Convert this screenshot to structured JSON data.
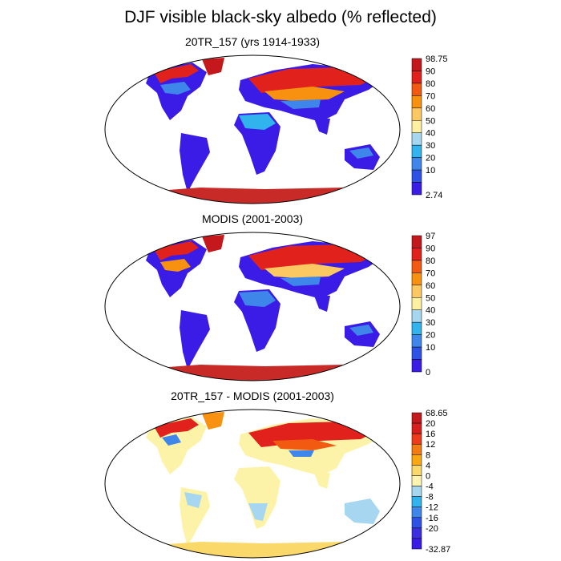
{
  "title": "DJF visible black-sky albedo (% reflected)",
  "panels": [
    {
      "title": "20TR_157 (yrs 1914-1933)",
      "colorbar": {
        "labels": [
          "98.75",
          "90",
          "80",
          "70",
          "60",
          "50",
          "40",
          "30",
          "20",
          "10",
          "2.74"
        ],
        "colors": [
          "#c4181c",
          "#e0211c",
          "#f25a12",
          "#f7910f",
          "#fbc862",
          "#fdf0a0",
          "#a6d6f0",
          "#31b4ee",
          "#3f86ea",
          "#2f52e6",
          "#3b1ce6"
        ]
      }
    },
    {
      "title": "MODIS (2001-2003)",
      "colorbar": {
        "labels": [
          "97",
          "90",
          "80",
          "70",
          "60",
          "50",
          "40",
          "30",
          "20",
          "10",
          "0"
        ],
        "colors": [
          "#c4181c",
          "#e0211c",
          "#f25a12",
          "#f7910f",
          "#fbc862",
          "#fdf0a0",
          "#a6d6f0",
          "#31b4ee",
          "#3f86ea",
          "#2f52e6",
          "#3b1ce6"
        ]
      }
    },
    {
      "title": "20TR_157 - MODIS (2001-2003)",
      "colorbar": {
        "labels": [
          "68.65",
          "20",
          "16",
          "12",
          "8",
          "4",
          "0",
          "-4",
          "-8",
          "-12",
          "-16",
          "-20",
          "-32.87"
        ],
        "colors": [
          "#c4181c",
          "#d81e1c",
          "#ee3b1c",
          "#f47a12",
          "#f9a814",
          "#fbd86a",
          "#fff4b0",
          "#a6d6f0",
          "#31b4ee",
          "#3f86ea",
          "#2f52e6",
          "#3a2ee0",
          "#3b1ce6"
        ]
      }
    }
  ],
  "map_colors": {
    "ocean": "#ffffff",
    "outline": "#000000",
    "low_albedo": "#3b1ce6",
    "mid_albedo": "#3f86ea",
    "high_albedo": "#e0211c",
    "antarctica": "#c82a28",
    "diff_zero": "#fdf3a8",
    "diff_neg": "#a6d6f0",
    "diff_pos": "#e0211c"
  }
}
